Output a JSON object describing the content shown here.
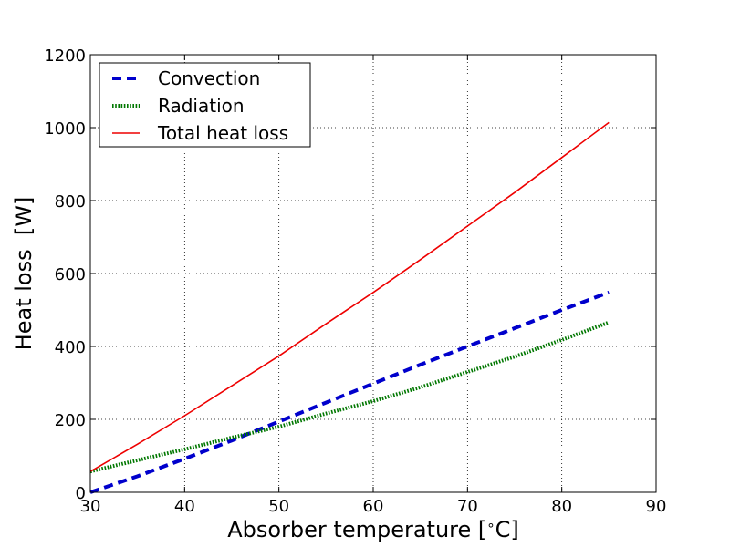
{
  "chart_data": {
    "type": "line",
    "xlabel": "Absorber temperature [$^\\circ$C]",
    "xlabel_prefix": "Absorber temperature [",
    "xlabel_degree": "∘",
    "xlabel_suffix": "C]",
    "ylabel": "Heat loss  [W]",
    "xlim": [
      30,
      90
    ],
    "ylim": [
      0,
      1200
    ],
    "xticks": [
      30,
      40,
      50,
      60,
      70,
      80,
      90
    ],
    "yticks": [
      0,
      200,
      400,
      600,
      800,
      1000,
      1200
    ],
    "grid": true,
    "legend_position": "top-left",
    "series": [
      {
        "name": "Convection",
        "color": "#0000cc",
        "style": "dashed",
        "x": [
          30,
          35,
          40,
          45,
          50,
          55,
          60,
          65,
          70,
          75,
          80,
          85
        ],
        "y": [
          0,
          44,
          92,
          142,
          194,
          246,
          298,
          350,
          400,
          450,
          500,
          548
        ]
      },
      {
        "name": "Radiation",
        "color": "#007700",
        "style": "dotted",
        "x": [
          30,
          35,
          40,
          45,
          50,
          55,
          60,
          65,
          70,
          75,
          80,
          85
        ],
        "y": [
          57,
          88,
          118,
          150,
          180,
          216,
          250,
          288,
          330,
          372,
          418,
          466
        ]
      },
      {
        "name": "Total heat loss",
        "color": "#ee0000",
        "style": "solid",
        "x": [
          30,
          35,
          40,
          45,
          50,
          55,
          60,
          65,
          70,
          75,
          80,
          85
        ],
        "y": [
          57,
          132,
          210,
          292,
          374,
          462,
          548,
          638,
          730,
          822,
          918,
          1014
        ]
      }
    ]
  }
}
